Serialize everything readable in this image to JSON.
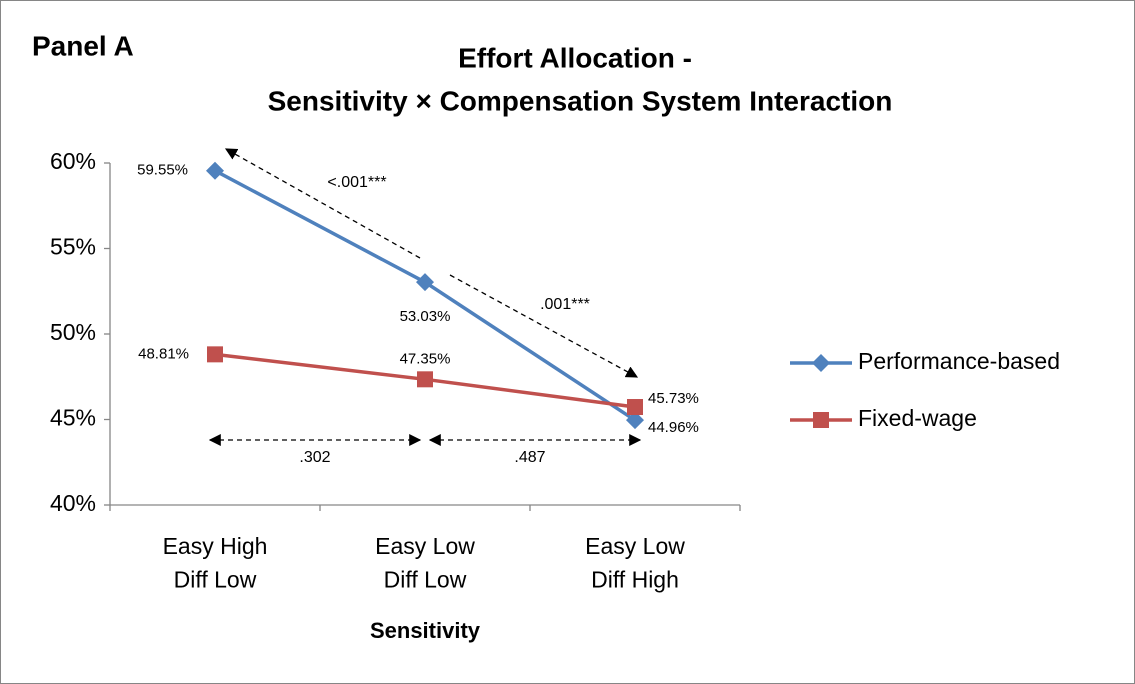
{
  "chart_data": {
    "type": "line",
    "panel_label": "Panel A",
    "title": "Effort Allocation -",
    "subtitle": "Sensitivity × Compensation System Interaction",
    "x_label": "Sensitivity",
    "categories": [
      "Easy High\nDiff Low",
      "Easy Low\nDiff Low",
      "Easy Low\nDiff High"
    ],
    "series": [
      {
        "name": "Performance-based",
        "color": "#4f81bd",
        "marker": "diamond",
        "values": [
          59.55,
          53.03,
          44.96
        ],
        "value_labels": [
          "59.55%",
          "53.03%",
          "44.96%"
        ]
      },
      {
        "name": "Fixed-wage",
        "color": "#c0504d",
        "marker": "square",
        "values": [
          48.81,
          47.35,
          45.73
        ],
        "value_labels": [
          "48.81%",
          "47.35%",
          "45.73%"
        ]
      }
    ],
    "ylim": [
      40,
      60
    ],
    "yticks": [
      {
        "value": 40,
        "label": "40%"
      },
      {
        "value": 45,
        "label": "45%"
      },
      {
        "value": 50,
        "label": "50%"
      },
      {
        "value": 55,
        "label": "55%"
      },
      {
        "value": 60,
        "label": "60%"
      }
    ],
    "annotations": [
      "<.001***",
      ".001***",
      ".302",
      ".487"
    ],
    "legend": "right"
  }
}
